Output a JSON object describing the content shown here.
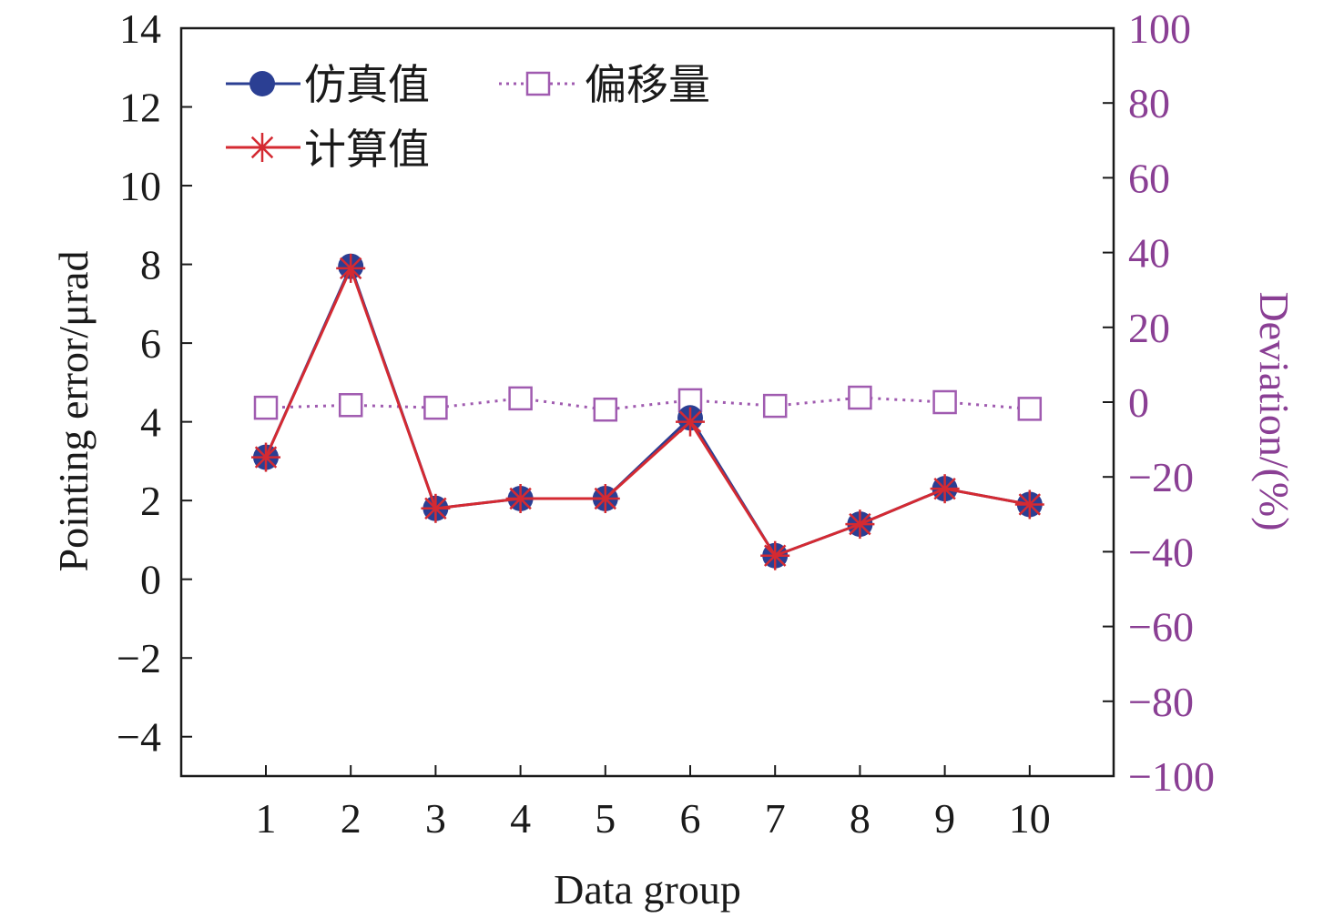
{
  "colors": {
    "sim": "#2b3f93",
    "calc": "#d42a32",
    "dev": "#a05bb0",
    "axis": "#1a1a1a",
    "right_axis": "#8a3f94"
  },
  "legend": {
    "sim": "仿真值",
    "calc": "计算值",
    "dev": "偏移量"
  },
  "chart_data": {
    "type": "line",
    "xlabel": "Data group",
    "ylabel": "Pointing error/μrad",
    "y2label": "Deviation/(%)",
    "categories": [
      "1",
      "2",
      "3",
      "4",
      "5",
      "6",
      "7",
      "8",
      "9",
      "10"
    ],
    "ylim": [
      -5,
      14
    ],
    "y2lim": [
      -100,
      100
    ],
    "yticks": [
      "−4",
      "−2",
      "0",
      "2",
      "4",
      "6",
      "8",
      "10",
      "12",
      "14"
    ],
    "y2ticks": [
      "−100",
      "−80",
      "−60",
      "−40",
      "−20",
      "0",
      "20",
      "40",
      "60",
      "80",
      "100"
    ],
    "series": [
      {
        "name": "仿真值",
        "axis": "left",
        "marker": "filled-circle",
        "values": [
          3.1,
          7.95,
          1.8,
          2.05,
          2.05,
          4.1,
          0.6,
          1.4,
          2.3,
          1.9
        ]
      },
      {
        "name": "计算值",
        "axis": "left",
        "marker": "asterisk",
        "values": [
          3.1,
          7.9,
          1.8,
          2.05,
          2.05,
          4.0,
          0.6,
          1.4,
          2.3,
          1.9
        ]
      },
      {
        "name": "偏移量",
        "axis": "right",
        "marker": "open-square",
        "values": [
          -1.5,
          -0.8,
          -1.5,
          1.0,
          -2.0,
          0.5,
          -1.0,
          1.2,
          0.0,
          -1.8
        ]
      }
    ]
  }
}
